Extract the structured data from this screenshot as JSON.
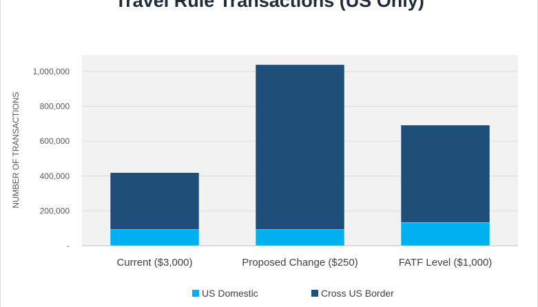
{
  "chart_data": {
    "type": "bar",
    "stacked": true,
    "title": "Travel Rule Transactions (US Only)",
    "xlabel": "",
    "ylabel": "NUMBER OF TRANSACTIONS",
    "ylim": [
      0,
      1000000
    ],
    "yticks": [
      0,
      200000,
      400000,
      600000,
      800000,
      1000000
    ],
    "ytick_labels": [
      "-",
      "200,000",
      "400,000",
      "600,000",
      "800,000",
      "1,000,000"
    ],
    "categories": [
      "Current ($3,000)",
      "Proposed Change ($250)",
      "FATF Level ($1,000)"
    ],
    "series": [
      {
        "name": "US Domestic",
        "color": "#00b0f0",
        "values": [
          92000,
          92000,
          132000
        ]
      },
      {
        "name": "Cross US Border",
        "color": "#1f4e79",
        "values": [
          328000,
          948000,
          561000
        ]
      }
    ],
    "grid": true,
    "legend_position": "bottom"
  }
}
